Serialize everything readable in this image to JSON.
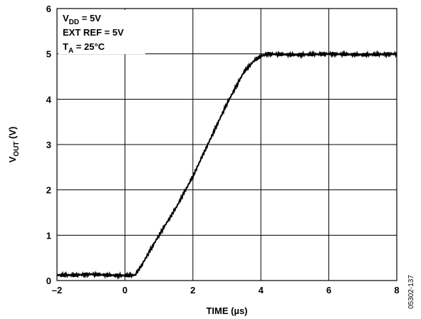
{
  "chart_data": {
    "type": "line",
    "xlabel": "TIME (µs)",
    "ylabel_main": "V",
    "ylabel_sub": "OUT",
    "ylabel_unit": " (V)",
    "xlim": [
      -2,
      8
    ],
    "ylim": [
      0,
      6
    ],
    "x_ticks": [
      -2,
      0,
      2,
      4,
      6,
      8
    ],
    "x_tick_labels": [
      "–2",
      "0",
      "2",
      "4",
      "6",
      "8"
    ],
    "y_ticks": [
      0,
      1,
      2,
      3,
      4,
      5,
      6
    ],
    "y_tick_labels": [
      "0",
      "1",
      "2",
      "3",
      "4",
      "5",
      "6"
    ],
    "grid": true,
    "series": [
      {
        "x": [
          -2.0,
          -1.5,
          -1.0,
          -0.5,
          0.0,
          0.3,
          0.5,
          1.0,
          1.5,
          2.0,
          2.5,
          3.0,
          3.5,
          3.8,
          4.0,
          4.2,
          5.0,
          6.0,
          7.0,
          8.0
        ],
        "y": [
          0.12,
          0.12,
          0.14,
          0.12,
          0.11,
          0.12,
          0.35,
          1.0,
          1.6,
          2.3,
          3.1,
          3.9,
          4.6,
          4.85,
          4.95,
          5.0,
          4.98,
          5.0,
          4.98,
          5.0
        ],
        "color": "#000000"
      }
    ],
    "annotations": [
      {
        "base": "V",
        "sub": "DD",
        "rest": " = 5V"
      },
      {
        "base": "EXT REF = 5V",
        "sub": "",
        "rest": ""
      },
      {
        "base": "T",
        "sub": "A",
        "rest": " = 25°C"
      }
    ]
  },
  "figure_id": "05302-137"
}
